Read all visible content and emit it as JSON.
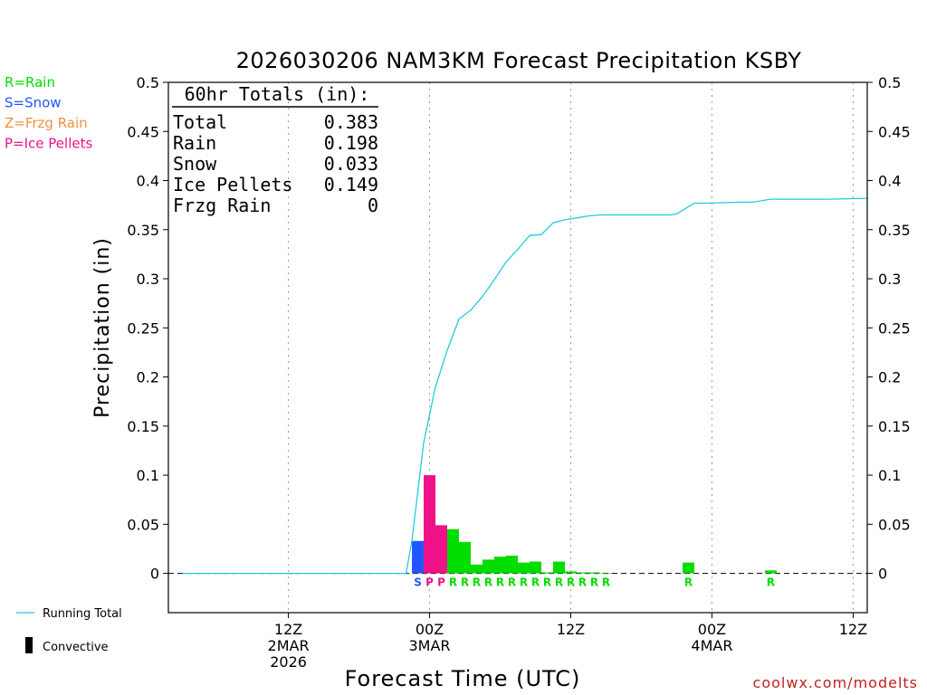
{
  "chart_data": {
    "type": "bar",
    "title": "2026030206 NAM3KM Forecast Precipitation KSBY",
    "xlabel": "Forecast Time (UTC)",
    "ylabel": "Precipitation (in)",
    "ylim": [
      -0.04,
      0.5
    ],
    "yticks": [
      0,
      0.05,
      0.1,
      0.15,
      0.2,
      0.25,
      0.3,
      0.35,
      0.4,
      0.45,
      0.5
    ],
    "ytick_labels": [
      "0",
      "0.05",
      "0.1",
      "0.15",
      "0.2",
      "0.25",
      "0.3",
      "0.35",
      "0.4",
      "0.45",
      "0.5"
    ],
    "xlim_hours": [
      -22.2,
      37.2
    ],
    "x_unit": "hours relative to 00Z 3MAR 2026",
    "xticks": [
      {
        "hour": -12,
        "lines": [
          "12Z",
          "2MAR",
          "2026"
        ]
      },
      {
        "hour": 0,
        "lines": [
          "00Z",
          "3MAR"
        ]
      },
      {
        "hour": 12,
        "lines": [
          "12Z"
        ]
      },
      {
        "hour": 24,
        "lines": [
          "00Z",
          "4MAR"
        ]
      },
      {
        "hour": 36,
        "lines": [
          "12Z"
        ]
      }
    ],
    "bars": [
      {
        "hour": -1,
        "value": 0.033,
        "type": "S"
      },
      {
        "hour": 0,
        "value": 0.1,
        "type": "P"
      },
      {
        "hour": 1,
        "value": 0.049,
        "type": "P"
      },
      {
        "hour": 2,
        "value": 0.045,
        "type": "R"
      },
      {
        "hour": 3,
        "value": 0.032,
        "type": "R"
      },
      {
        "hour": 4,
        "value": 0.009,
        "type": "R"
      },
      {
        "hour": 5,
        "value": 0.014,
        "type": "R"
      },
      {
        "hour": 6,
        "value": 0.017,
        "type": "R"
      },
      {
        "hour": 7,
        "value": 0.018,
        "type": "R"
      },
      {
        "hour": 8,
        "value": 0.011,
        "type": "R"
      },
      {
        "hour": 9,
        "value": 0.012,
        "type": "R"
      },
      {
        "hour": 10,
        "value": 0.001,
        "type": "R"
      },
      {
        "hour": 11,
        "value": 0.012,
        "type": "R"
      },
      {
        "hour": 12,
        "value": 0.002,
        "type": "R"
      },
      {
        "hour": 13,
        "value": 0.001,
        "type": "R"
      },
      {
        "hour": 14,
        "value": 0.001,
        "type": "R"
      },
      {
        "hour": 15,
        "value": 0.0005,
        "type": "R"
      },
      {
        "hour": 22,
        "value": 0.011,
        "type": "R"
      },
      {
        "hour": 29,
        "value": 0.003,
        "type": "R"
      }
    ],
    "running_total": {
      "name": "Running Total",
      "points": [
        [
          -21,
          0
        ],
        [
          -2,
          0
        ],
        [
          -1.5,
          0.033
        ],
        [
          -0.5,
          0.133
        ],
        [
          0.5,
          0.19
        ],
        [
          1.5,
          0.227
        ],
        [
          2.5,
          0.259
        ],
        [
          3.5,
          0.268
        ],
        [
          4.5,
          0.282
        ],
        [
          5.5,
          0.299
        ],
        [
          6.5,
          0.317
        ],
        [
          7.5,
          0.33
        ],
        [
          8.5,
          0.344
        ],
        [
          9.5,
          0.345
        ],
        [
          10.5,
          0.357
        ],
        [
          11.5,
          0.36
        ],
        [
          12.5,
          0.362
        ],
        [
          13.5,
          0.364
        ],
        [
          14.5,
          0.365
        ],
        [
          15.5,
          0.365
        ],
        [
          20.5,
          0.365
        ],
        [
          21,
          0.366
        ],
        [
          22.5,
          0.377
        ],
        [
          23.5,
          0.377
        ],
        [
          26.5,
          0.378
        ],
        [
          27.5,
          0.378
        ],
        [
          29,
          0.381
        ],
        [
          30,
          0.381
        ],
        [
          34,
          0.381
        ],
        [
          37.2,
          0.382
        ]
      ]
    },
    "totals_box": {
      "heading": "60hr Totals (in):",
      "rows": [
        {
          "label": "Total",
          "value": "0.383"
        },
        {
          "label": "Rain",
          "value": "0.198"
        },
        {
          "label": "Snow",
          "value": "0.033"
        },
        {
          "label": "Ice Pellets",
          "value": "0.149"
        },
        {
          "label": "Frzg Rain",
          "value": "0"
        }
      ]
    },
    "type_legend": [
      {
        "code": "R",
        "text": "R=Rain",
        "color": "#00dd00"
      },
      {
        "code": "S",
        "text": "S=Snow",
        "color": "#2255ff"
      },
      {
        "code": "Z",
        "text": "Z=Frzg Rain",
        "color": "#f09040"
      },
      {
        "code": "P",
        "text": "P=Ice Pellets",
        "color": "#ee1188"
      }
    ],
    "colors": {
      "R": "#00dd00",
      "S": "#2255ff",
      "P": "#ee1188",
      "Z": "#f09040",
      "running_total": "#22ccdd",
      "convective": "#000000"
    },
    "bottom_legend": {
      "running_total": "Running Total",
      "convective": "Convective"
    },
    "credit": "coolwx.com/modelts"
  }
}
